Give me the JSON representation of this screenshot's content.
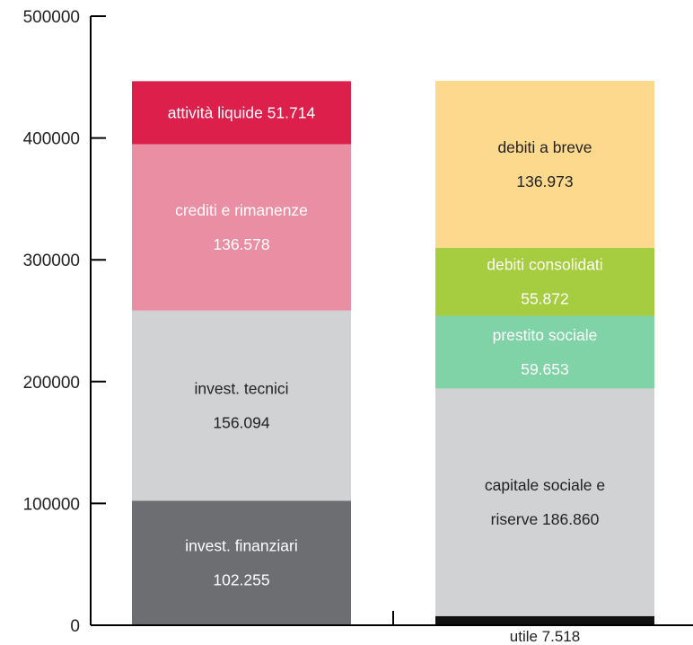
{
  "chart_data": {
    "type": "bar",
    "stacked": true,
    "ylim": [
      0,
      500000
    ],
    "yticks": [
      0,
      100000,
      200000,
      300000,
      400000,
      500000
    ],
    "ytick_labels": [
      "0",
      "100000",
      "200000",
      "300000",
      "400000",
      "500000"
    ],
    "bars": [
      {
        "segments": [
          {
            "lines": [
              "invest. finanziari",
              "102.255"
            ],
            "value": 102255,
            "color": "#6d6e71",
            "text_color": "#ffffff"
          },
          {
            "lines": [
              "invest. tecnici",
              "156.094"
            ],
            "value": 156094,
            "color": "#d1d2d4",
            "text_color": "#222222"
          },
          {
            "lines": [
              "crediti e rimanenze",
              "136.578"
            ],
            "value": 136578,
            "color": "#e98ea3",
            "text_color": "#ffffff"
          },
          {
            "lines": [
              "attività liquide 51.714"
            ],
            "value": 51714,
            "color": "#dc1f4b",
            "text_color": "#ffffff"
          }
        ]
      },
      {
        "below_label": "utile 7.518",
        "segments": [
          {
            "lines": [],
            "value": 7518,
            "color": "#111111",
            "text_color": "#ffffff"
          },
          {
            "lines": [
              "capitale sociale e",
              "riserve 186.860"
            ],
            "value": 186860,
            "color": "#d1d2d4",
            "text_color": "#222222"
          },
          {
            "lines": [
              "prestito sociale",
              "59.653"
            ],
            "value": 59653,
            "color": "#80d3a6",
            "text_color": "#ffffff"
          },
          {
            "lines": [
              "debiti consolidati",
              "55.872"
            ],
            "value": 55872,
            "color": "#a6cc3f",
            "text_color": "#ffffff"
          },
          {
            "lines": [
              "debiti a breve",
              "136.973"
            ],
            "value": 136973,
            "color": "#fcd98c",
            "text_color": "#222222"
          }
        ]
      }
    ]
  }
}
